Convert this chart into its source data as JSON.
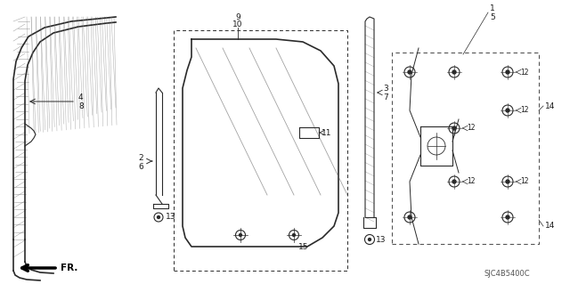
{
  "bg_color": "#ffffff",
  "line_color": "#2a2a2a",
  "label_color": "#1a1a1a",
  "part_code": "SJC4B5400C",
  "fr_label": "FR.",
  "hatch_color": "#555555",
  "dashed_box_color": "#444444"
}
